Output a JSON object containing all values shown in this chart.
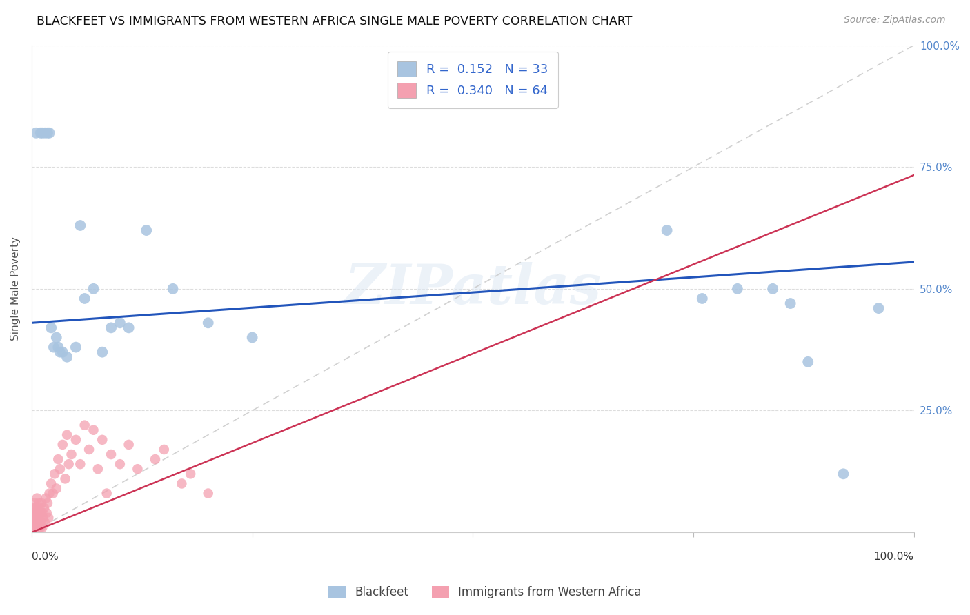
{
  "title": "BLACKFEET VS IMMIGRANTS FROM WESTERN AFRICA SINGLE MALE POVERTY CORRELATION CHART",
  "source": "Source: ZipAtlas.com",
  "ylabel": "Single Male Poverty",
  "legend_bottom": [
    "Blackfeet",
    "Immigrants from Western Africa"
  ],
  "R_blue": 0.152,
  "N_blue": 33,
  "R_pink": 0.34,
  "N_pink": 64,
  "blue_color": "#a8c4e0",
  "pink_color": "#f4a0b0",
  "blue_line_color": "#2255bb",
  "pink_line_color": "#cc3355",
  "diagonal_color": "#cccccc",
  "watermark": "ZIPatlas",
  "blue_x": [
    0.005,
    0.01,
    0.012,
    0.015,
    0.018,
    0.02,
    0.022,
    0.025,
    0.028,
    0.03,
    0.032,
    0.035,
    0.04,
    0.05,
    0.055,
    0.06,
    0.07,
    0.08,
    0.09,
    0.1,
    0.11,
    0.13,
    0.16,
    0.2,
    0.25,
    0.72,
    0.76,
    0.8,
    0.84,
    0.86,
    0.88,
    0.92,
    0.96
  ],
  "blue_y": [
    0.82,
    0.82,
    0.82,
    0.82,
    0.82,
    0.82,
    0.42,
    0.38,
    0.4,
    0.38,
    0.37,
    0.37,
    0.36,
    0.38,
    0.63,
    0.48,
    0.5,
    0.37,
    0.42,
    0.43,
    0.42,
    0.62,
    0.5,
    0.43,
    0.4,
    0.62,
    0.48,
    0.5,
    0.5,
    0.47,
    0.35,
    0.12,
    0.46
  ],
  "pink_x": [
    0.001,
    0.001,
    0.002,
    0.002,
    0.002,
    0.003,
    0.003,
    0.003,
    0.004,
    0.004,
    0.005,
    0.005,
    0.006,
    0.006,
    0.006,
    0.007,
    0.007,
    0.008,
    0.008,
    0.008,
    0.009,
    0.009,
    0.01,
    0.01,
    0.011,
    0.011,
    0.012,
    0.012,
    0.013,
    0.014,
    0.015,
    0.016,
    0.017,
    0.018,
    0.019,
    0.02,
    0.022,
    0.024,
    0.026,
    0.028,
    0.03,
    0.032,
    0.035,
    0.038,
    0.04,
    0.042,
    0.045,
    0.05,
    0.055,
    0.06,
    0.065,
    0.07,
    0.075,
    0.08,
    0.085,
    0.09,
    0.1,
    0.11,
    0.12,
    0.14,
    0.15,
    0.17,
    0.18,
    0.2
  ],
  "pink_y": [
    0.02,
    0.04,
    0.01,
    0.03,
    0.05,
    0.02,
    0.04,
    0.06,
    0.01,
    0.03,
    0.02,
    0.05,
    0.01,
    0.03,
    0.07,
    0.02,
    0.04,
    0.01,
    0.03,
    0.06,
    0.02,
    0.05,
    0.01,
    0.04,
    0.02,
    0.06,
    0.01,
    0.04,
    0.03,
    0.05,
    0.02,
    0.07,
    0.04,
    0.06,
    0.03,
    0.08,
    0.1,
    0.08,
    0.12,
    0.09,
    0.15,
    0.13,
    0.18,
    0.11,
    0.2,
    0.14,
    0.16,
    0.19,
    0.14,
    0.22,
    0.17,
    0.21,
    0.13,
    0.19,
    0.08,
    0.16,
    0.14,
    0.18,
    0.13,
    0.15,
    0.17,
    0.1,
    0.12,
    0.08
  ]
}
